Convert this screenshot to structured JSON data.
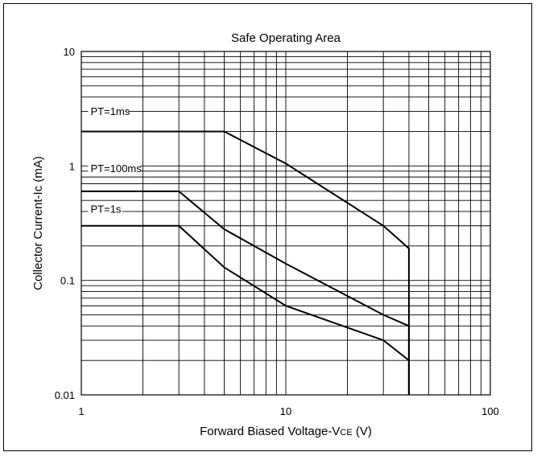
{
  "chart_data": {
    "type": "line",
    "title": "Safe Operating Area",
    "xlabel_main": "Forward Biased Voltage-V",
    "xlabel_sub": "CE",
    "xlabel_unit": " (V)",
    "ylabel": "Collector Current-Ic (mA)",
    "x_scale": "log",
    "y_scale": "log",
    "xlim": [
      1,
      100
    ],
    "ylim": [
      0.01,
      10
    ],
    "grid": true,
    "x_ticks": [
      {
        "value": 1,
        "label": "1"
      },
      {
        "value": 10,
        "label": "10"
      },
      {
        "value": 100,
        "label": "100"
      }
    ],
    "y_ticks": [
      {
        "value": 10,
        "label": "10"
      },
      {
        "value": 1,
        "label": "1"
      },
      {
        "value": 0.1,
        "label": "0.1"
      },
      {
        "value": 0.01,
        "label": "0.01"
      }
    ],
    "series": [
      {
        "name": "PT=1ms",
        "label_x": 1.08,
        "label_y": 3.0,
        "points": [
          [
            1,
            2.0
          ],
          [
            5,
            2.0
          ],
          [
            10,
            1.05
          ],
          [
            30,
            0.3
          ],
          [
            40,
            0.19
          ],
          [
            40,
            0.01
          ]
        ]
      },
      {
        "name": "PT=100ms",
        "label_x": 1.08,
        "label_y": 0.95,
        "points": [
          [
            1,
            0.6
          ],
          [
            3,
            0.6
          ],
          [
            5,
            0.28
          ],
          [
            10,
            0.14
          ],
          [
            30,
            0.05
          ],
          [
            40,
            0.04
          ],
          [
            40,
            0.01
          ]
        ]
      },
      {
        "name": "PT=1s",
        "label_x": 1.08,
        "label_y": 0.42,
        "points": [
          [
            1,
            0.3
          ],
          [
            3,
            0.3
          ],
          [
            5,
            0.13
          ],
          [
            10,
            0.06
          ],
          [
            30,
            0.03
          ],
          [
            40,
            0.02
          ],
          [
            40,
            0.01
          ]
        ]
      }
    ]
  }
}
